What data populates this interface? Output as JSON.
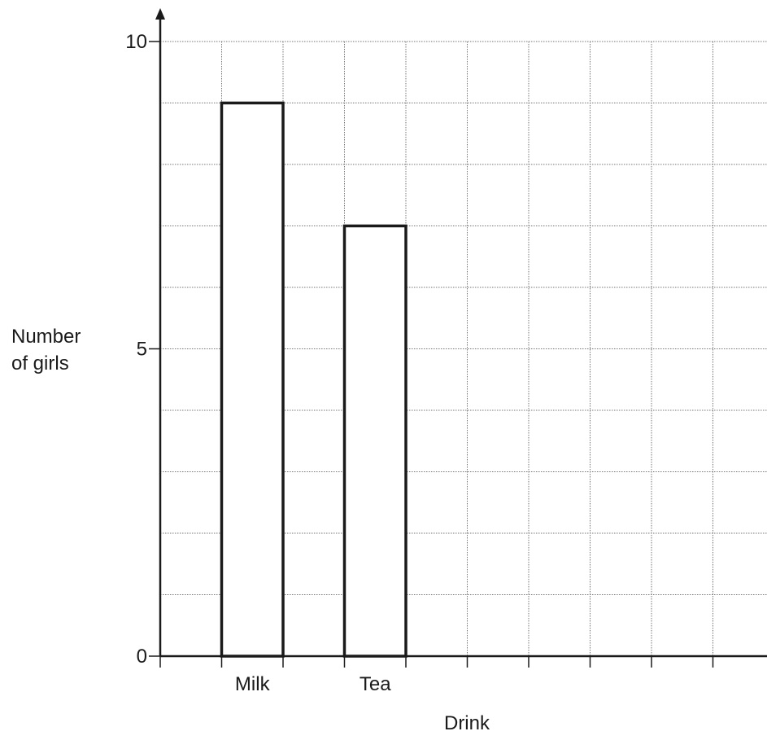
{
  "chart_data": {
    "type": "bar",
    "categories": [
      "Milk",
      "Tea"
    ],
    "values": [
      9,
      7
    ],
    "xlabel": "Drink",
    "ylabel": [
      "Number",
      "of girls"
    ],
    "ylim": [
      0,
      10
    ],
    "y_ticks": [
      0,
      5,
      10
    ],
    "y_tick_labels": [
      "0",
      "5",
      "10"
    ],
    "y_minor_step": 1,
    "x_slots": 10,
    "grid": true
  }
}
